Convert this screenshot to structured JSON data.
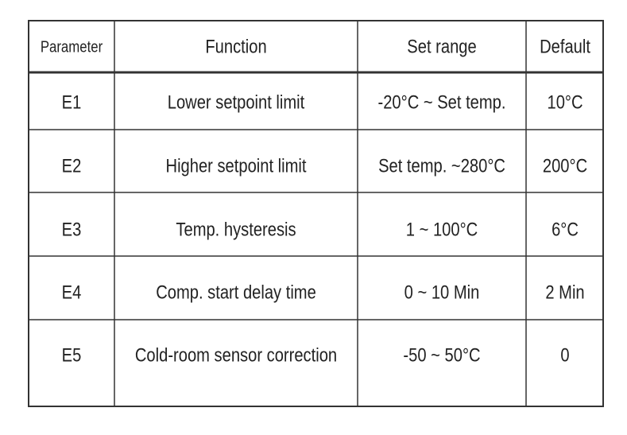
{
  "table": {
    "header": [
      "Parameter",
      "Function",
      "Set range",
      "Default"
    ],
    "rows": [
      [
        "E1",
        "Lower setpoint limit",
        "-20°C ~ Set temp.",
        "10°C"
      ],
      [
        "E2",
        "Higher setpoint limit",
        "Set temp. ~280°C",
        "200°C"
      ],
      [
        "E3",
        "Temp. hysteresis",
        "1 ~ 100°C",
        "6°C"
      ],
      [
        "E4",
        "Comp. start delay time",
        "0 ~ 10 Min",
        "2 Min"
      ],
      [
        "E5",
        "Cold-room sensor correction",
        "-50 ~ 50°C",
        "0"
      ]
    ]
  }
}
